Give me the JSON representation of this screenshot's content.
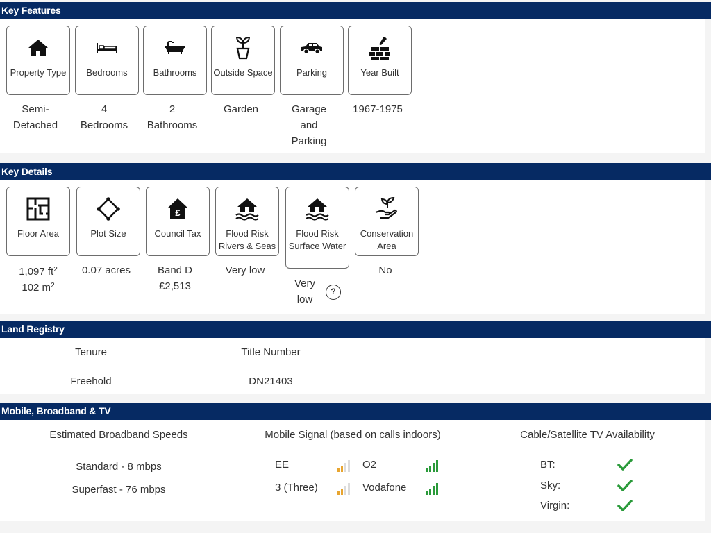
{
  "key_features": {
    "title": "Key Features",
    "items": [
      {
        "label": "Property Type",
        "icon": "house-icon",
        "value_lines": [
          "Semi-",
          "Detached"
        ]
      },
      {
        "label": "Bedrooms",
        "icon": "bed-icon",
        "value_lines": [
          "4",
          "Bedrooms"
        ]
      },
      {
        "label": "Bathrooms",
        "icon": "bathtub-icon",
        "value_lines": [
          "2",
          "Bathrooms"
        ]
      },
      {
        "label": "Outside Space",
        "icon": "plant-pot-icon",
        "value_lines": [
          "Garden"
        ]
      },
      {
        "label": "Parking",
        "icon": "car-icon",
        "value_lines": [
          "Garage",
          "and",
          "Parking"
        ]
      },
      {
        "label": "Year Built",
        "icon": "brick-wall-icon",
        "value_lines": [
          "1967-1975"
        ]
      }
    ]
  },
  "key_details": {
    "title": "Key Details",
    "items": [
      {
        "label": "Floor Area",
        "icon": "floor-plan-icon"
      },
      {
        "label": "Plot Size",
        "icon": "plot-icon"
      },
      {
        "label": "Council Tax",
        "icon": "house-pound-icon"
      },
      {
        "label": "Flood Risk Rivers & Seas",
        "icon": "flood-house-icon"
      },
      {
        "label": "Flood Risk Surface Water",
        "icon": "flood-house-icon"
      },
      {
        "label": "Conservation Area",
        "icon": "hand-plant-icon"
      }
    ],
    "floor_area": {
      "ft": "1,097 ft",
      "ft_unit": "2",
      "m": "102 m",
      "m_unit": "2"
    },
    "plot_size": "0.07 acres",
    "council_tax": {
      "band": "Band D",
      "amount": "£2,513"
    },
    "flood_rivers": "Very low",
    "flood_surface": {
      "line1": "Very",
      "line2": "low",
      "help": "?"
    },
    "conservation": "No"
  },
  "land_registry": {
    "title": "Land Registry",
    "tenure_label": "Tenure",
    "tenure_value": "Freehold",
    "title_number_label": "Title Number",
    "title_number_value": "DN21403"
  },
  "mobile": {
    "title": "Mobile, Broadband & TV",
    "broadband_heading": "Estimated Broadband Speeds",
    "standard": "Standard - 8 mbps",
    "superfast": "Superfast - 76 mbps",
    "signal_heading": "Mobile Signal (based on calls indoors)",
    "networks": [
      {
        "name": "EE",
        "bars": 2,
        "color": "#e8a530"
      },
      {
        "name": "O2",
        "bars": 4,
        "color": "#2a9a3a"
      },
      {
        "name": "3 (Three)",
        "bars": 2,
        "color": "#e8a530"
      },
      {
        "name": "Vodafone",
        "bars": 4,
        "color": "#2a9a3a"
      }
    ],
    "tv_heading": "Cable/Satellite TV Availability",
    "tv": [
      {
        "name": "BT:",
        "available": true
      },
      {
        "name": "Sky:",
        "available": true
      },
      {
        "name": "Virgin:",
        "available": true
      }
    ],
    "check_color": "#2a9a3a"
  }
}
